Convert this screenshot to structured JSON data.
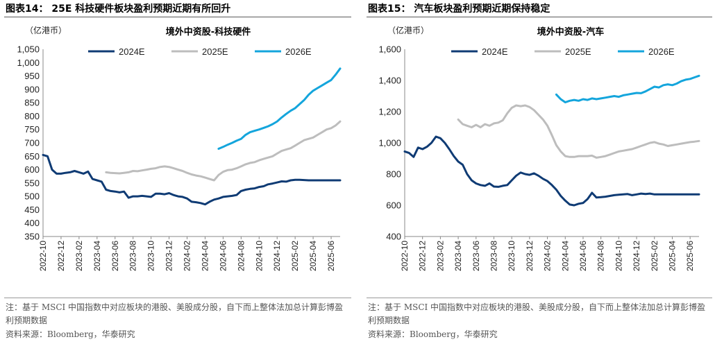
{
  "chart_data": [
    {
      "type": "line",
      "figure_title": "图表14：  25E 科技硬件板块盈利预期近期有所回升",
      "title": "境外中资股-科技硬件",
      "unit": "（亿港币）",
      "ylim": [
        350,
        1050
      ],
      "yticks": [
        "350",
        "400",
        "450",
        "500",
        "550",
        "600",
        "650",
        "700",
        "750",
        "800",
        "850",
        "900",
        "950",
        "1,000",
        "1,050"
      ],
      "xticks": [
        "2022-10",
        "2022-12",
        "2023-02",
        "2023-04",
        "2023-06",
        "2023-08",
        "2023-10",
        "2023-12",
        "2024-02",
        "2024-04",
        "2024-06",
        "2024-08",
        "2024-10",
        "2024-12",
        "2025-02",
        "2025-04",
        "2025-06"
      ],
      "xlim": [
        0,
        33
      ],
      "grid": false,
      "legend_position": "top",
      "series": [
        {
          "name": "2024E",
          "color": "#0f3b74",
          "x": [
            0,
            0.5,
            1,
            1.5,
            2,
            2.5,
            3,
            3.5,
            4,
            4.5,
            5,
            5.5,
            6,
            6.5,
            7,
            7.5,
            8,
            8.5,
            9,
            9.5,
            10,
            10.5,
            11,
            11.5,
            12,
            12.5,
            13,
            13.5,
            14,
            14.5,
            15,
            15.5,
            16,
            16.5,
            17,
            17.5,
            18,
            18.5,
            19,
            19.5,
            20,
            20.5,
            21,
            21.5,
            22,
            22.5,
            23,
            23.5,
            24,
            24.5,
            25,
            25.5,
            26,
            26.5,
            27,
            27.5,
            28,
            28.5,
            29,
            29.5,
            30,
            30.5,
            31,
            31.5,
            32,
            32.5,
            33
          ],
          "values": [
            655,
            650,
            600,
            585,
            585,
            588,
            590,
            595,
            590,
            585,
            593,
            565,
            560,
            555,
            525,
            520,
            518,
            515,
            518,
            495,
            500,
            500,
            502,
            500,
            498,
            510,
            510,
            508,
            512,
            505,
            500,
            498,
            492,
            480,
            478,
            475,
            470,
            480,
            488,
            492,
            498,
            500,
            502,
            505,
            520,
            525,
            528,
            530,
            535,
            538,
            545,
            548,
            552,
            556,
            555,
            560,
            562,
            562,
            561,
            560,
            560,
            560,
            560,
            560,
            560,
            560,
            560
          ]
        },
        {
          "name": "2025E",
          "color": "#bdbdbd",
          "x": [
            7,
            7.5,
            8,
            8.5,
            9,
            9.5,
            10,
            10.5,
            11,
            11.5,
            12,
            12.5,
            13,
            13.5,
            14,
            14.5,
            15,
            15.5,
            16,
            16.5,
            17,
            17.5,
            18,
            18.5,
            19,
            19.5,
            20,
            20.5,
            21,
            21.5,
            22,
            22.5,
            23,
            23.5,
            24,
            24.5,
            25,
            25.5,
            26,
            26.5,
            27,
            27.5,
            28,
            28.5,
            29,
            29.5,
            30,
            30.5,
            31,
            31.5,
            32,
            32.5,
            33
          ],
          "values": [
            590,
            588,
            587,
            586,
            588,
            590,
            595,
            594,
            597,
            600,
            603,
            605,
            610,
            612,
            610,
            605,
            600,
            595,
            588,
            582,
            578,
            575,
            570,
            565,
            560,
            580,
            592,
            598,
            600,
            605,
            612,
            620,
            625,
            628,
            635,
            640,
            645,
            650,
            660,
            670,
            675,
            680,
            690,
            700,
            710,
            715,
            720,
            730,
            740,
            750,
            755,
            765,
            780
          ]
        },
        {
          "name": "2026E",
          "color": "#14a5dc",
          "x": [
            19.5,
            20,
            20.5,
            21,
            21.5,
            22,
            22.5,
            23,
            23.5,
            24,
            24.5,
            25,
            25.5,
            26,
            26.5,
            27,
            27.5,
            28,
            28.5,
            29,
            29.5,
            30,
            30.5,
            31,
            31.5,
            32,
            32.5,
            33
          ],
          "values": [
            678,
            685,
            693,
            700,
            708,
            715,
            730,
            740,
            745,
            750,
            756,
            762,
            770,
            780,
            795,
            808,
            820,
            830,
            845,
            860,
            880,
            895,
            905,
            915,
            925,
            935,
            955,
            978
          ]
        }
      ]
    },
    {
      "type": "line",
      "figure_title": "图表15：  汽车板块盈利预期近期保持稳定",
      "title": "境外中资股-汽车",
      "unit": "（亿港币）",
      "ylim": [
        400,
        1600
      ],
      "yticks": [
        "400",
        "600",
        "800",
        "1,000",
        "1,200",
        "1,400",
        "1,600"
      ],
      "xticks": [
        "2022-10",
        "2022-12",
        "2023-02",
        "2023-04",
        "2023-06",
        "2023-08",
        "2023-10",
        "2023-12",
        "2024-02",
        "2024-04",
        "2024-06",
        "2024-08",
        "2024-10",
        "2024-12",
        "2025-02",
        "2025-04",
        "2025-06"
      ],
      "xlim": [
        0,
        33
      ],
      "grid": false,
      "legend_position": "top",
      "series": [
        {
          "name": "2024E",
          "color": "#0f3b74",
          "x": [
            0,
            0.5,
            1,
            1.5,
            2,
            2.5,
            3,
            3.5,
            4,
            4.5,
            5,
            5.5,
            6,
            6.5,
            7,
            7.5,
            8,
            8.5,
            9,
            9.5,
            10,
            10.5,
            11,
            11.5,
            12,
            12.5,
            13,
            13.5,
            14,
            14.5,
            15,
            15.5,
            16,
            16.5,
            17,
            17.5,
            18,
            18.5,
            19,
            19.5,
            20,
            20.5,
            21,
            21.5,
            22,
            22.5,
            23,
            23.5,
            24,
            24.5,
            25,
            25.5,
            26,
            26.5,
            27,
            27.5,
            28,
            28.5,
            29,
            29.5,
            30,
            30.5,
            31,
            31.5,
            32,
            32.5,
            33
          ],
          "values": [
            945,
            935,
            910,
            970,
            960,
            975,
            1000,
            1040,
            1030,
            1000,
            960,
            915,
            880,
            860,
            800,
            760,
            740,
            730,
            725,
            740,
            720,
            718,
            725,
            730,
            760,
            790,
            810,
            800,
            795,
            805,
            790,
            770,
            755,
            730,
            700,
            660,
            630,
            605,
            600,
            610,
            615,
            640,
            680,
            650,
            652,
            655,
            660,
            665,
            668,
            670,
            672,
            665,
            670,
            675,
            672,
            675,
            670,
            670,
            670,
            670,
            670,
            670,
            670,
            670,
            670,
            670,
            670
          ]
        },
        {
          "name": "2025E",
          "color": "#bdbdbd",
          "x": [
            6,
            6.5,
            7,
            7.5,
            8,
            8.5,
            9,
            9.5,
            10,
            10.5,
            11,
            11.5,
            12,
            12.5,
            13,
            13.5,
            14,
            14.5,
            15,
            15.5,
            16,
            16.5,
            17,
            17.5,
            18,
            18.5,
            19,
            19.5,
            20,
            20.5,
            21,
            21.5,
            22,
            22.5,
            23,
            23.5,
            24,
            24.5,
            25,
            25.5,
            26,
            26.5,
            27,
            27.5,
            28,
            28.5,
            29,
            29.5,
            30,
            30.5,
            31,
            31.5,
            32,
            32.5,
            33
          ],
          "values": [
            1150,
            1120,
            1110,
            1100,
            1115,
            1100,
            1120,
            1110,
            1125,
            1130,
            1145,
            1190,
            1225,
            1240,
            1235,
            1240,
            1230,
            1210,
            1180,
            1150,
            1110,
            1050,
            985,
            945,
            915,
            910,
            910,
            915,
            915,
            915,
            918,
            905,
            910,
            915,
            925,
            935,
            945,
            950,
            955,
            960,
            970,
            980,
            990,
            1000,
            1005,
            995,
            990,
            980,
            985,
            990,
            995,
            1000,
            1005,
            1008,
            1012
          ]
        },
        {
          "name": "2026E",
          "color": "#14a5dc",
          "x": [
            17,
            17.5,
            18,
            18.5,
            19,
            19.5,
            20,
            20.5,
            21,
            21.5,
            22,
            22.5,
            23,
            23.5,
            24,
            24.5,
            25,
            25.5,
            26,
            26.5,
            27,
            27.5,
            28,
            28.5,
            29,
            29.5,
            30,
            30.5,
            31,
            31.5,
            32,
            32.5,
            33
          ],
          "values": [
            1310,
            1280,
            1260,
            1270,
            1275,
            1270,
            1280,
            1275,
            1285,
            1280,
            1285,
            1290,
            1295,
            1300,
            1295,
            1305,
            1310,
            1315,
            1320,
            1318,
            1330,
            1345,
            1360,
            1355,
            1370,
            1375,
            1370,
            1380,
            1395,
            1405,
            1410,
            1420,
            1430
          ]
        }
      ]
    }
  ],
  "notes": {
    "text": "注：基于 MSCI 中国指数中对应板块的港股、美股成分股，自下而上整体法加总计算彭博盈利预期数据",
    "source": "资料来源：Bloomberg，华泰研究"
  }
}
